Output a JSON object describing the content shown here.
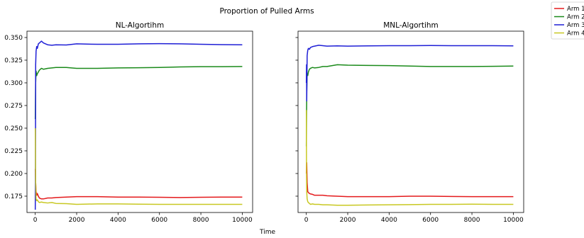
{
  "figure": {
    "suptitle": "Proportion of Pulled Arms",
    "xlabel": "Time"
  },
  "legend": {
    "placement": "top-right-outside",
    "entries": [
      {
        "label": "Arm 1",
        "color": "#e41a1c"
      },
      {
        "label": "Arm 2",
        "color": "#1a8a1a"
      },
      {
        "label": "Arm 3",
        "color": "#1f1fd6"
      },
      {
        "label": "Arm 4",
        "color": "#c8c822"
      }
    ]
  },
  "chart_data": [
    {
      "type": "line",
      "title": "NL-Algortihm",
      "xlim": [
        -400,
        10500
      ],
      "ylim": [
        0.157,
        0.357
      ],
      "xticks": [
        0,
        2000,
        4000,
        6000,
        8000,
        10000
      ],
      "yticks": [
        0.175,
        0.2,
        0.225,
        0.25,
        0.275,
        0.3,
        0.325,
        0.35
      ],
      "ytick_labels": [
        "0.175",
        "0.200",
        "0.225",
        "0.250",
        "0.275",
        "0.300",
        "0.325",
        "0.350"
      ],
      "series": [
        {
          "name": "Arm 1",
          "color": "#e41a1c",
          "x": [
            1,
            20,
            40,
            70,
            100,
            150,
            200,
            300,
            400,
            600,
            800,
            1000,
            1500,
            2000,
            3000,
            4000,
            5000,
            6000,
            7000,
            8000,
            9000,
            10000
          ],
          "y": [
            0.205,
            0.19,
            0.18,
            0.176,
            0.178,
            0.175,
            0.173,
            0.172,
            0.172,
            0.173,
            0.173,
            0.1735,
            0.174,
            0.1745,
            0.1745,
            0.174,
            0.174,
            0.1738,
            0.1735,
            0.1738,
            0.174,
            0.174
          ]
        },
        {
          "name": "Arm 2",
          "color": "#1a8a1a",
          "x": [
            1,
            20,
            40,
            70,
            100,
            150,
            200,
            300,
            400,
            600,
            800,
            1000,
            1500,
            2000,
            3000,
            4000,
            5000,
            6000,
            7000,
            8000,
            9000,
            10000
          ],
          "y": [
            0.26,
            0.3,
            0.313,
            0.308,
            0.31,
            0.312,
            0.314,
            0.316,
            0.315,
            0.316,
            0.3165,
            0.317,
            0.317,
            0.316,
            0.316,
            0.3165,
            0.3167,
            0.317,
            0.3175,
            0.3178,
            0.3178,
            0.318
          ]
        },
        {
          "name": "Arm 3",
          "color": "#1f1fd6",
          "x": [
            1,
            10,
            20,
            40,
            70,
            100,
            150,
            200,
            300,
            400,
            600,
            800,
            1000,
            1500,
            2000,
            3000,
            4000,
            5000,
            6000,
            7000,
            8000,
            9000,
            10000
          ],
          "y": [
            0.16,
            0.2,
            0.32,
            0.335,
            0.34,
            0.338,
            0.343,
            0.344,
            0.346,
            0.344,
            0.342,
            0.3415,
            0.342,
            0.3418,
            0.343,
            0.3425,
            0.3425,
            0.343,
            0.3432,
            0.343,
            0.3425,
            0.3422,
            0.342
          ]
        },
        {
          "name": "Arm 4",
          "color": "#c8c822",
          "x": [
            1,
            10,
            20,
            40,
            70,
            100,
            150,
            200,
            300,
            400,
            600,
            800,
            1000,
            1500,
            2000,
            3000,
            4000,
            5000,
            6000,
            7000,
            8000,
            9000,
            10000
          ],
          "y": [
            0.25,
            0.22,
            0.19,
            0.172,
            0.17,
            0.171,
            0.169,
            0.168,
            0.1685,
            0.168,
            0.1675,
            0.168,
            0.167,
            0.1668,
            0.166,
            0.1665,
            0.1665,
            0.1662,
            0.166,
            0.166,
            0.166,
            0.166,
            0.166
          ]
        }
      ]
    },
    {
      "type": "line",
      "title": "MNL-Algortihm",
      "xlim": [
        -400,
        10500
      ],
      "ylim": [
        0.157,
        0.357
      ],
      "xticks": [
        0,
        2000,
        4000,
        6000,
        8000,
        10000
      ],
      "yticks": [
        0.175,
        0.2,
        0.225,
        0.25,
        0.275,
        0.3,
        0.325,
        0.35
      ],
      "ytick_labels": [],
      "series": [
        {
          "name": "Arm 1",
          "color": "#e41a1c",
          "x": [
            1,
            20,
            40,
            70,
            100,
            150,
            200,
            300,
            400,
            600,
            800,
            1000,
            1500,
            2000,
            3000,
            4000,
            5000,
            6000,
            7000,
            8000,
            9000,
            10000
          ],
          "y": [
            0.2,
            0.212,
            0.19,
            0.18,
            0.179,
            0.178,
            0.1775,
            0.177,
            0.176,
            0.176,
            0.176,
            0.1755,
            0.175,
            0.1745,
            0.1745,
            0.1745,
            0.175,
            0.175,
            0.1747,
            0.1745,
            0.1745,
            0.1745
          ]
        },
        {
          "name": "Arm 2",
          "color": "#1a8a1a",
          "x": [
            1,
            20,
            40,
            70,
            100,
            150,
            200,
            300,
            400,
            600,
            800,
            1000,
            1500,
            2000,
            3000,
            4000,
            5000,
            6000,
            7000,
            8000,
            9000,
            10000
          ],
          "y": [
            0.23,
            0.29,
            0.31,
            0.308,
            0.312,
            0.315,
            0.316,
            0.317,
            0.3165,
            0.317,
            0.318,
            0.318,
            0.32,
            0.3195,
            0.3192,
            0.319,
            0.3185,
            0.318,
            0.318,
            0.318,
            0.3182,
            0.3185
          ]
        },
        {
          "name": "Arm 3",
          "color": "#1f1fd6",
          "x": [
            1,
            10,
            20,
            40,
            70,
            100,
            150,
            200,
            300,
            400,
            600,
            800,
            1000,
            1500,
            2000,
            3000,
            4000,
            5000,
            6000,
            7000,
            8000,
            9000,
            10000
          ],
          "y": [
            0.3,
            0.32,
            0.28,
            0.33,
            0.336,
            0.338,
            0.337,
            0.339,
            0.34,
            0.3405,
            0.3415,
            0.341,
            0.3405,
            0.3408,
            0.3405,
            0.3408,
            0.341,
            0.341,
            0.3412,
            0.341,
            0.341,
            0.341,
            0.3408
          ]
        },
        {
          "name": "Arm 4",
          "color": "#c8c822",
          "x": [
            1,
            10,
            20,
            40,
            70,
            100,
            150,
            200,
            300,
            400,
            600,
            800,
            1000,
            1500,
            2000,
            3000,
            4000,
            5000,
            6000,
            7000,
            8000,
            9000,
            10000
          ],
          "y": [
            0.27,
            0.2,
            0.18,
            0.172,
            0.169,
            0.168,
            0.167,
            0.166,
            0.1665,
            0.166,
            0.166,
            0.1655,
            0.1655,
            0.165,
            0.165,
            0.1653,
            0.1655,
            0.1657,
            0.166,
            0.166,
            0.1662,
            0.166,
            0.166
          ]
        }
      ]
    }
  ]
}
